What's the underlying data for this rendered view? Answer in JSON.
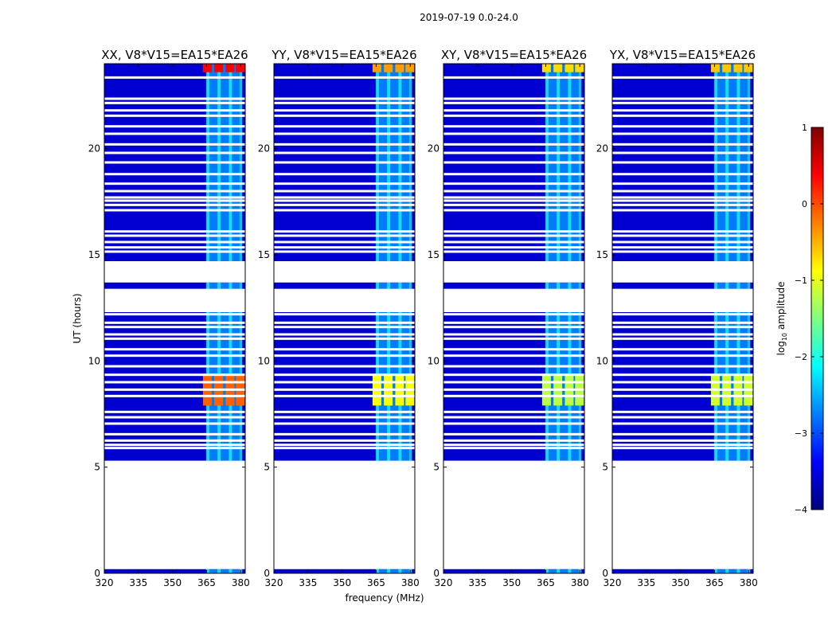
{
  "figure_title": "2019-07-19 0.0-24.0",
  "chart_data": {
    "type": "heatmap",
    "suptitle": "2019-07-19 0.0-24.0",
    "xlabel": "frequency (MHz)",
    "ylabel": "UT (hours)",
    "xlim": [
      320,
      382
    ],
    "ylim": [
      0,
      24
    ],
    "xticks": [
      320,
      335,
      350,
      365,
      380
    ],
    "yticks": [
      0,
      5,
      10,
      15,
      20
    ],
    "colorbar": {
      "label": "log10 amplitude",
      "min": -4,
      "max": 1,
      "ticks": [
        1,
        0,
        -1,
        -2,
        -3,
        -4
      ],
      "tick_labels": [
        "1",
        "0",
        "−1",
        "−2",
        "−3",
        "−4"
      ],
      "colormap": [
        "#00007f",
        "#0000ff",
        "#007fff",
        "#00ffff",
        "#7fff7f",
        "#ffff00",
        "#ff7f00",
        "#ff0000",
        "#7f0000"
      ]
    },
    "panels": [
      {
        "title": "XX, V8*V15=EA15*EA26"
      },
      {
        "title": "YY, V8*V15=EA15*EA26"
      },
      {
        "title": "XY, V8*V15=EA15*EA26"
      },
      {
        "title": "YX, V8*V15=EA15*EA26"
      }
    ],
    "data_spans_hours": [
      [
        0.0,
        0.2
      ],
      [
        5.3,
        13.7
      ],
      [
        14.7,
        24.0
      ]
    ],
    "gap_spans_hours": [
      [
        0.2,
        5.3
      ],
      [
        12.3,
        13.4
      ],
      [
        13.7,
        14.7
      ]
    ],
    "flagged_rows_hours": [
      23.35,
      22.35,
      22.15,
      21.8,
      21.55,
      21.05,
      20.7,
      20.2,
      19.8,
      19.35,
      18.8,
      18.35,
      18.0,
      17.7,
      17.55,
      17.35,
      17.1,
      16.1,
      15.9,
      15.6,
      15.35,
      15.15,
      12.2,
      11.8,
      11.6,
      11.25,
      11.05,
      10.55,
      10.25,
      9.75,
      9.35,
      9.0,
      8.65,
      8.35,
      7.6,
      7.35,
      7.05,
      6.55,
      6.25,
      6.05,
      5.9
    ],
    "rfi_band_mhz": [
      361,
      382
    ],
    "rfi_channels_mhz": [
      365.5,
      370.5,
      375.5,
      380
    ],
    "strong_rfi_hours": [
      [
        23.6,
        24.0
      ],
      [
        7.9,
        9.4
      ]
    ],
    "panel_rfi_log_amp": {
      "strong": [
        0.4,
        -0.4,
        -0.7,
        -0.6
      ],
      "band": -2.0,
      "background": -3.6
    }
  }
}
